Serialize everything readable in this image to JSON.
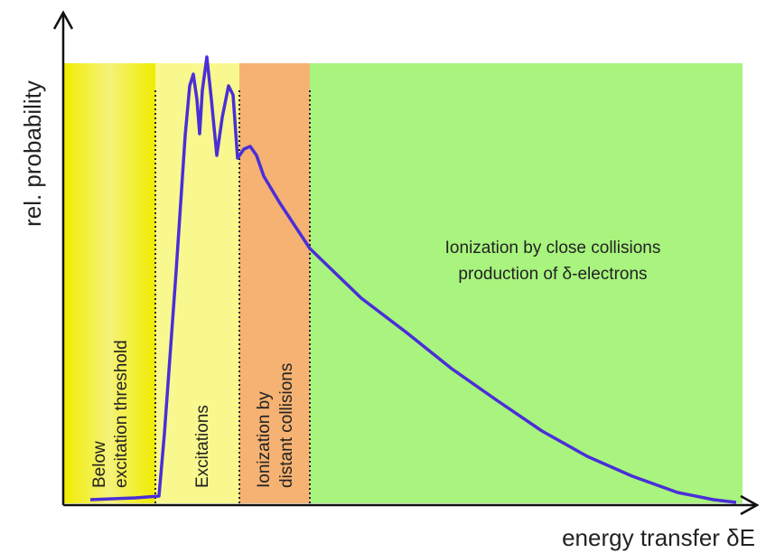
{
  "axes": {
    "y_label": "rel. probability",
    "x_label": "energy transfer δE"
  },
  "regions": [
    {
      "lines": [
        "Below",
        "excitation threshold"
      ]
    },
    {
      "lines": [
        "Excitations"
      ]
    },
    {
      "lines": [
        "Ionization by",
        "distant collisions"
      ]
    },
    {
      "lines": [
        "Ionization by close collisions",
        "production of δ-electrons"
      ]
    }
  ]
}
